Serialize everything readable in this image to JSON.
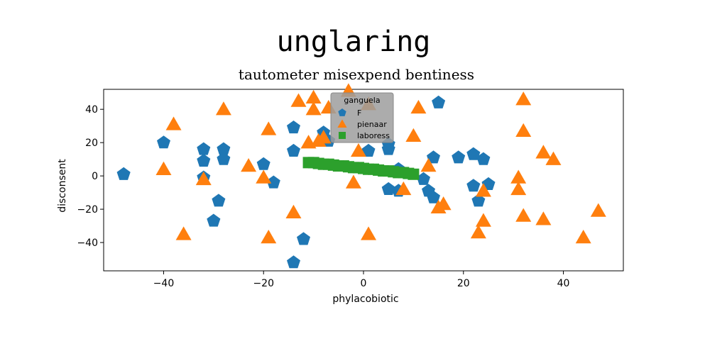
{
  "chart_data": {
    "type": "scatter",
    "title": "unglaring",
    "subtitle": "tautometer misexpend bentiness",
    "xlabel": "phylacobiotic",
    "ylabel": "disconsent",
    "xlim": [
      -52,
      52
    ],
    "ylim": [
      -57,
      52
    ],
    "xticks": [
      -40,
      -20,
      0,
      20,
      40
    ],
    "yticks": [
      -40,
      -20,
      0,
      20,
      40
    ],
    "xtick_labels": [
      "−40",
      "−20",
      "0",
      "20",
      "40"
    ],
    "ytick_labels": [
      "−40",
      "−20",
      "0",
      "20",
      "40"
    ],
    "grid": false,
    "legend": {
      "title": "ganguela",
      "placement": "top-center",
      "entries": [
        "F",
        "pienaar",
        "laboress"
      ]
    },
    "series": [
      {
        "name": "F",
        "marker": "pentagon",
        "color": "#1f77b4",
        "points": [
          [
            -48,
            1
          ],
          [
            -40,
            20
          ],
          [
            -32,
            16
          ],
          [
            -32,
            9
          ],
          [
            -32,
            -1
          ],
          [
            -28,
            16
          ],
          [
            -28,
            10
          ],
          [
            -29,
            -15
          ],
          [
            -30,
            -27
          ],
          [
            -20,
            7
          ],
          [
            -18,
            -4
          ],
          [
            -14,
            29
          ],
          [
            -14,
            15
          ],
          [
            -12,
            -38
          ],
          [
            -14,
            -52
          ],
          [
            -8,
            26
          ],
          [
            -7,
            21
          ],
          [
            1,
            15
          ],
          [
            5,
            19
          ],
          [
            5,
            16
          ],
          [
            7,
            4
          ],
          [
            7,
            -9
          ],
          [
            5,
            -8
          ],
          [
            12,
            -2
          ],
          [
            13,
            -9
          ],
          [
            14,
            -13
          ],
          [
            14,
            11
          ],
          [
            15,
            44
          ],
          [
            19,
            11
          ],
          [
            22,
            13
          ],
          [
            22,
            -6
          ],
          [
            23,
            -15
          ],
          [
            24,
            10
          ],
          [
            25,
            -5
          ]
        ]
      },
      {
        "name": "pienaar",
        "marker": "triangle",
        "color": "#ff7f0e",
        "points": [
          [
            -38,
            31
          ],
          [
            -40,
            4
          ],
          [
            -36,
            -35
          ],
          [
            -32,
            -2
          ],
          [
            -28,
            40
          ],
          [
            -23,
            6
          ],
          [
            -20,
            -1
          ],
          [
            -19,
            28
          ],
          [
            -19,
            -37
          ],
          [
            -14,
            -22
          ],
          [
            -13,
            45
          ],
          [
            -11,
            20
          ],
          [
            -10,
            47
          ],
          [
            -10,
            40
          ],
          [
            -9,
            21
          ],
          [
            -8,
            23
          ],
          [
            -7,
            41
          ],
          [
            -3,
            51
          ],
          [
            -2,
            -4
          ],
          [
            -1,
            15
          ],
          [
            1,
            43
          ],
          [
            1,
            -35
          ],
          [
            8,
            -8
          ],
          [
            10,
            24
          ],
          [
            11,
            41
          ],
          [
            13,
            6
          ],
          [
            15,
            -19
          ],
          [
            16,
            -17
          ],
          [
            23,
            -34
          ],
          [
            24,
            -27
          ],
          [
            24,
            -9
          ],
          [
            31,
            -8
          ],
          [
            31,
            -1
          ],
          [
            32,
            46
          ],
          [
            32,
            27
          ],
          [
            32,
            -24
          ],
          [
            36,
            14
          ],
          [
            36,
            -26
          ],
          [
            38,
            10
          ],
          [
            44,
            -37
          ],
          [
            47,
            -21
          ]
        ]
      },
      {
        "name": "laboress",
        "marker": "square",
        "color": "#2ca02c",
        "points": [
          [
            -11,
            8
          ],
          [
            -10,
            8
          ],
          [
            -9,
            7.5
          ],
          [
            -8,
            7
          ],
          [
            -7,
            7
          ],
          [
            -6,
            6.5
          ],
          [
            -5,
            6
          ],
          [
            -4,
            6
          ],
          [
            -3,
            5.5
          ],
          [
            -2,
            5
          ],
          [
            -1,
            5
          ],
          [
            0,
            4.5
          ],
          [
            1,
            4
          ],
          [
            2,
            4
          ],
          [
            3,
            3.5
          ],
          [
            4,
            3
          ],
          [
            5,
            3
          ],
          [
            6,
            2.5
          ],
          [
            7,
            2
          ],
          [
            8,
            2
          ],
          [
            9,
            1.5
          ],
          [
            10,
            1
          ]
        ]
      }
    ]
  }
}
